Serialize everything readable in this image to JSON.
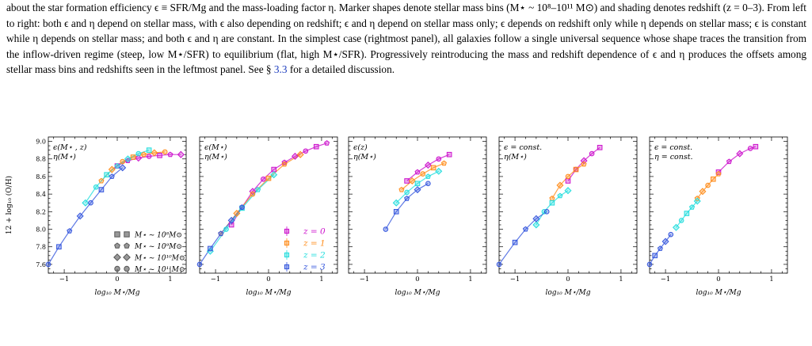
{
  "caption": {
    "before_link": "about the star formation efficiency ϵ ≡ SFR/Mg and the mass-loading factor η. Marker shapes denote stellar mass bins (M⋆ ~ 10⁸–10¹¹ M⊙) and shading denotes redshift (z = 0–3). From left to right: both ϵ and η depend on stellar mass, with ϵ also depending on redshift; ϵ and η depend on stellar mass only; ϵ depends on redshift only while η depends on stellar mass; ϵ is constant while η depends on stellar mass; and both ϵ and η are constant. In the simplest case (rightmost panel), all galaxies follow a single universal sequence whose shape traces the transition from the inflow-driven regime (steep, low M⋆/SFR) to equilibrium (flat, high M⋆/SFR). Progressively reintroducing the mass and redshift dependence of ϵ and η produces the offsets among stellar mass bins and redshifts seen in the leftmost panel. See § ",
    "link": "3.3",
    "after_link": " for a detailed discussion."
  },
  "axes": {
    "ylabel": "12 + log₁₀ (O/H)",
    "xlabel": "log₁₀ M⋆/Mg",
    "xlim": [
      -1.3,
      1.3
    ],
    "ylim": [
      7.5,
      9.05
    ],
    "xticks": [
      -1,
      0,
      1
    ],
    "yticks": [
      7.6,
      7.8,
      8.0,
      8.2,
      8.4,
      8.6,
      8.8,
      9.0
    ]
  },
  "legend_mass": [
    {
      "label": "M⋆ ~ 10⁸M⊙",
      "marker": "square"
    },
    {
      "label": "M⋆ ~ 10⁹M⊙",
      "marker": "pentagon"
    },
    {
      "label": "M⋆ ~ 10¹⁰M⊙",
      "marker": "diamond"
    },
    {
      "label": "M⋆ ~ 10¹¹M⊙",
      "marker": "circle"
    }
  ],
  "legend_redshift": [
    {
      "label": "z = 0",
      "color": "#cc11cc"
    },
    {
      "label": "z = 1",
      "color": "#ff8c1a"
    },
    {
      "label": "z = 2",
      "color": "#22dddd"
    },
    {
      "label": "z = 3",
      "color": "#3355dd"
    }
  ],
  "colors": {
    "z0": "#cc11cc",
    "z1": "#ff8c1a",
    "z2": "#22dddd",
    "z3": "#3355dd"
  },
  "chart_data": [
    {
      "type": "scatter",
      "panel_annotation": [
        "ϵ(M⋆ , z)",
        "η(M⋆)"
      ],
      "series": [
        {
          "redshift": 0,
          "x": [
            0.0,
            0.2,
            0.4,
            0.6,
            0.8,
            1.0,
            1.2
          ],
          "y": [
            8.72,
            8.78,
            8.81,
            8.83,
            8.84,
            8.85,
            8.85
          ]
        },
        {
          "redshift": 1,
          "x": [
            -0.3,
            -0.1,
            0.1,
            0.3,
            0.5,
            0.7,
            0.9
          ],
          "y": [
            8.55,
            8.68,
            8.77,
            8.82,
            8.85,
            8.87,
            8.88
          ]
        },
        {
          "redshift": 2,
          "x": [
            -0.6,
            -0.4,
            -0.2,
            0.0,
            0.2,
            0.4,
            0.6
          ],
          "y": [
            8.3,
            8.48,
            8.62,
            8.72,
            8.8,
            8.86,
            8.9
          ]
        },
        {
          "redshift": 3,
          "x": [
            -1.3,
            -1.1,
            -0.9,
            -0.7,
            -0.5,
            -0.3,
            -0.1,
            0.1
          ],
          "y": [
            7.6,
            7.8,
            7.98,
            8.15,
            8.3,
            8.45,
            8.6,
            8.7
          ]
        }
      ]
    },
    {
      "type": "scatter",
      "panel_annotation": [
        "ϵ(M⋆)",
        "η(M⋆)"
      ],
      "series": [
        {
          "redshift": 0,
          "x": [
            -0.7,
            -0.5,
            -0.3,
            -0.1,
            0.1,
            0.3,
            0.5,
            0.7,
            0.9,
            1.1
          ],
          "y": [
            8.05,
            8.25,
            8.43,
            8.57,
            8.68,
            8.76,
            8.83,
            8.89,
            8.94,
            8.98
          ]
        },
        {
          "redshift": 1,
          "x": [
            -0.9,
            -0.6,
            -0.3,
            0.0,
            0.3,
            0.6
          ],
          "y": [
            7.95,
            8.18,
            8.4,
            8.58,
            8.74,
            8.85
          ]
        },
        {
          "redshift": 2,
          "x": [
            -1.1,
            -0.8,
            -0.5,
            -0.2,
            0.1
          ],
          "y": [
            7.75,
            8.0,
            8.24,
            8.45,
            8.62
          ]
        },
        {
          "redshift": 3,
          "x": [
            -1.3,
            -1.1,
            -0.9,
            -0.7,
            -0.5
          ],
          "y": [
            7.6,
            7.78,
            7.95,
            8.1,
            8.25
          ]
        }
      ]
    },
    {
      "type": "scatter",
      "panel_annotation": [
        "ϵ(z)",
        "η(M⋆)"
      ],
      "series": [
        {
          "redshift": 0,
          "x": [
            -0.2,
            0.0,
            0.2,
            0.4,
            0.6
          ],
          "y": [
            8.55,
            8.65,
            8.73,
            8.8,
            8.85
          ]
        },
        {
          "redshift": 1,
          "x": [
            -0.3,
            -0.1,
            0.1,
            0.3,
            0.5
          ],
          "y": [
            8.45,
            8.55,
            8.63,
            8.7,
            8.75
          ]
        },
        {
          "redshift": 2,
          "x": [
            -0.4,
            -0.2,
            0.0,
            0.2,
            0.4
          ],
          "y": [
            8.3,
            8.42,
            8.52,
            8.6,
            8.66
          ]
        },
        {
          "redshift": 3,
          "x": [
            -0.6,
            -0.4,
            -0.2,
            0.0,
            0.2
          ],
          "y": [
            8.0,
            8.2,
            8.35,
            8.45,
            8.52
          ]
        }
      ]
    },
    {
      "type": "scatter",
      "panel_annotation": [
        "ϵ = const.",
        "η(M⋆)"
      ],
      "series": [
        {
          "redshift": 0,
          "x": [
            0.0,
            0.15,
            0.3,
            0.45,
            0.6
          ],
          "y": [
            8.55,
            8.68,
            8.78,
            8.86,
            8.93
          ]
        },
        {
          "redshift": 1,
          "x": [
            -0.3,
            -0.15,
            0.0,
            0.15,
            0.3
          ],
          "y": [
            8.35,
            8.5,
            8.6,
            8.68,
            8.74
          ]
        },
        {
          "redshift": 2,
          "x": [
            -0.6,
            -0.45,
            -0.3,
            -0.15,
            0.0
          ],
          "y": [
            8.05,
            8.2,
            8.3,
            8.38,
            8.44
          ]
        },
        {
          "redshift": 3,
          "x": [
            -1.3,
            -1.0,
            -0.8,
            -0.6,
            -0.4
          ],
          "y": [
            7.6,
            7.85,
            8.0,
            8.12,
            8.2
          ]
        }
      ]
    },
    {
      "type": "scatter",
      "panel_annotation": [
        "ϵ = const.",
        "η = const."
      ],
      "series": [
        {
          "redshift": 0,
          "x": [
            0.0,
            0.2,
            0.4,
            0.6,
            0.7
          ],
          "y": [
            8.65,
            8.77,
            8.86,
            8.92,
            8.94
          ]
        },
        {
          "redshift": 1,
          "x": [
            -0.4,
            -0.3,
            -0.2,
            -0.1,
            0.0
          ],
          "y": [
            8.35,
            8.43,
            8.5,
            8.57,
            8.63
          ]
        },
        {
          "redshift": 2,
          "x": [
            -0.8,
            -0.7,
            -0.6,
            -0.5,
            -0.4
          ],
          "y": [
            8.02,
            8.1,
            8.18,
            8.25,
            8.32
          ]
        },
        {
          "redshift": 3,
          "x": [
            -1.3,
            -1.2,
            -1.1,
            -1.0,
            -0.9
          ],
          "y": [
            7.6,
            7.7,
            7.78,
            7.86,
            7.94
          ]
        }
      ]
    }
  ]
}
